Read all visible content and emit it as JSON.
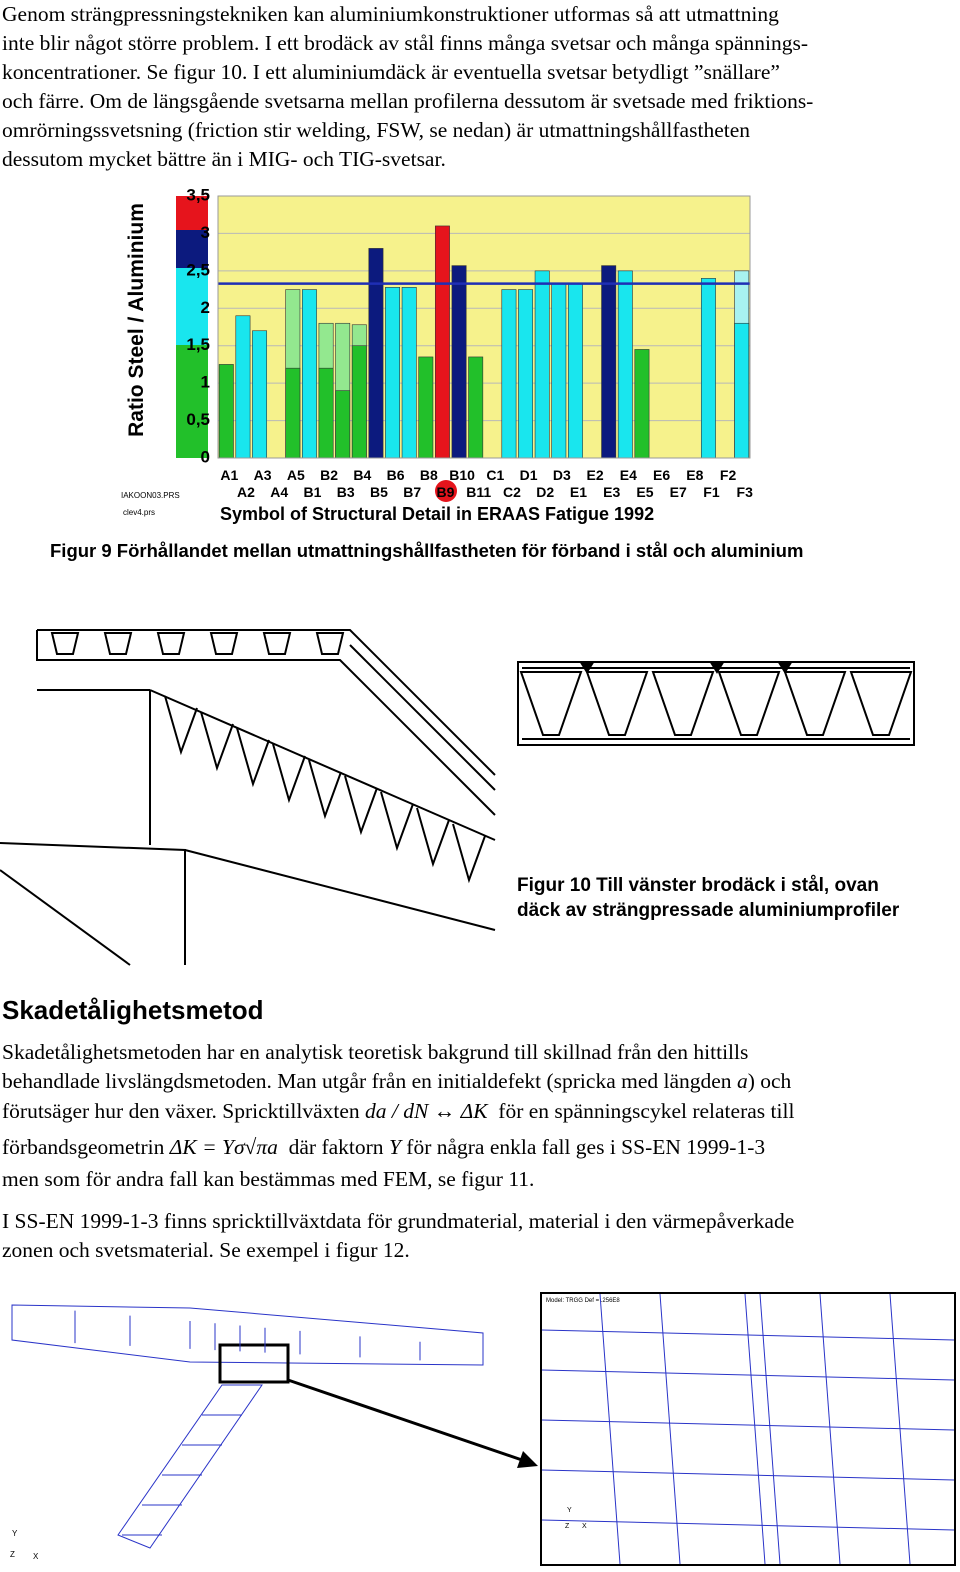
{
  "intro": [
    "Genom strängpressningstekniken kan aluminiumkonstruktioner utformas så att utmattning",
    "inte blir något större problem. I ett brodäck av stål finns många svetsar och många spännings-",
    "koncentrationer. Se figur 10. I ett aluminiumdäck är eventuella svetsar betydligt ”snällare”",
    "och färre. Om de längsgående svetsarna mellan profilerna dessutom är svetsade med friktions-",
    "omrörningssvetsning (friction stir welding, FSW, se nedan) är utmattningshållfastheten",
    "dessutom mycket bättre än i MIG- och TIG-svetsar."
  ],
  "chart_data": {
    "type": "bar",
    "y_axis_label": "Ratio Steel / Aluminium",
    "x_axis_label": "Symbol of Structural Detail in ERAAS Fatigue 1992",
    "file_labels": [
      "IAKOON03.PRS",
      "clev4.prs"
    ],
    "categories": [
      "A1",
      "A2",
      "A3",
      "A4",
      "A5",
      "B1",
      "B2",
      "B3",
      "B4",
      "B5",
      "B6",
      "B7",
      "B8",
      "B9",
      "B10",
      "B11",
      "C1",
      "C2",
      "D1",
      "D2",
      "D3",
      "E1",
      "E2",
      "E3",
      "E4",
      "E5",
      "E6",
      "E7",
      "E8",
      "F1",
      "F2",
      "F3"
    ],
    "series": [
      {
        "values": [
          1.25,
          1.9,
          1.7,
          null,
          2.25,
          2.25,
          1.8,
          1.8,
          1.78,
          2.8,
          2.28,
          2.28,
          1.35,
          3.1,
          2.57,
          1.35,
          null,
          2.25,
          2.25,
          2.5,
          2.33,
          2.33,
          null,
          2.57,
          2.5,
          1.45,
          null,
          null,
          null,
          2.4,
          null,
          2.5
        ],
        "colors": [
          "#22c02a",
          "#19e6ee",
          "#19e6ee",
          null,
          "#93e88f",
          "#19e6ee",
          "#93e88f",
          "#93e88f",
          "#93e88f",
          "#0c1a7e",
          "#19e6ee",
          "#19e6ee",
          "#22c02a",
          "#e6141c",
          "#0c1a7e",
          "#22c02a",
          null,
          "#19e6ee",
          "#19e6ee",
          "#19e6ee",
          "#19e6ee",
          "#19e6ee",
          null,
          "#0c1a7e",
          "#19e6ee",
          "#22c02a",
          null,
          null,
          null,
          "#19e6ee",
          null,
          "#a8f2f0"
        ]
      },
      {
        "values": [
          null,
          null,
          null,
          null,
          1.2,
          null,
          1.2,
          0.9,
          1.5,
          null,
          null,
          null,
          null,
          null,
          null,
          null,
          null,
          null,
          null,
          null,
          null,
          null,
          null,
          null,
          null,
          null,
          null,
          null,
          null,
          null,
          null,
          1.8
        ],
        "colors": [
          null,
          null,
          null,
          null,
          "#22c02a",
          null,
          "#22c02a",
          "#22c02a",
          "#22c02a",
          null,
          null,
          null,
          null,
          null,
          null,
          null,
          null,
          null,
          null,
          null,
          null,
          null,
          null,
          null,
          null,
          null,
          null,
          null,
          null,
          null,
          null,
          "#19e6ee"
        ]
      }
    ],
    "reference_line": {
      "value": 2.33,
      "color": "#1f2fb5"
    },
    "ylim": [
      0,
      3.5
    ],
    "yticks": [
      0,
      {
        "value": 0.5,
        "label": "0,5"
      },
      1,
      {
        "value": 1.5,
        "label": "1,5"
      },
      2,
      {
        "value": 2.5,
        "label": "2,5"
      },
      3,
      {
        "value": 3.5,
        "label": "3,5"
      }
    ],
    "grid": true,
    "background": "#f6f28c"
  },
  "figure9_caption": "Figur 9 Förhållandet mellan utmattningshållfastheten för förband i stål och aluminium",
  "figure10_caption": [
    "Figur 10 Till vänster brodäck i stål, ovan",
    "däck av strängpressade aluminiumprofiler"
  ],
  "heading": "Skadetålighetsmetod",
  "paragraph1": [
    [
      "Skadetålighetsmetoden har en analytisk teoretisk bakgrund till skillnad från den hittills"
    ],
    [
      "behandlade livslängdsmetoden. Man utgår från en initialdefekt (spricka med längden ",
      "a",
      ") och"
    ],
    [
      "förutsäger hur den växer. Spricktillväxten ",
      "da / dN ↔ ΔK",
      "  för en spänningscykel relateras till"
    ],
    [
      "förbandsgeometrin ",
      "ΔK = Yσ√πa",
      "  där faktorn ",
      "Y",
      " för några enkla fall ges i SS-EN 1999-1-3"
    ],
    [
      "men som för andra fall kan bestämmas med FEM, se figur 11."
    ]
  ],
  "paragraph2": [
    [
      "I SS-EN 1999-1-3 finns spricktillväxtdata för grundmaterial, material i den värmepåverkade"
    ],
    [
      "zonen och svetsmaterial. Se exempel i figur 12."
    ]
  ],
  "figure11_labels": {
    "model": "Model: TRGG Def = .256E8",
    "axes": [
      "Y",
      "Z",
      "X"
    ]
  }
}
